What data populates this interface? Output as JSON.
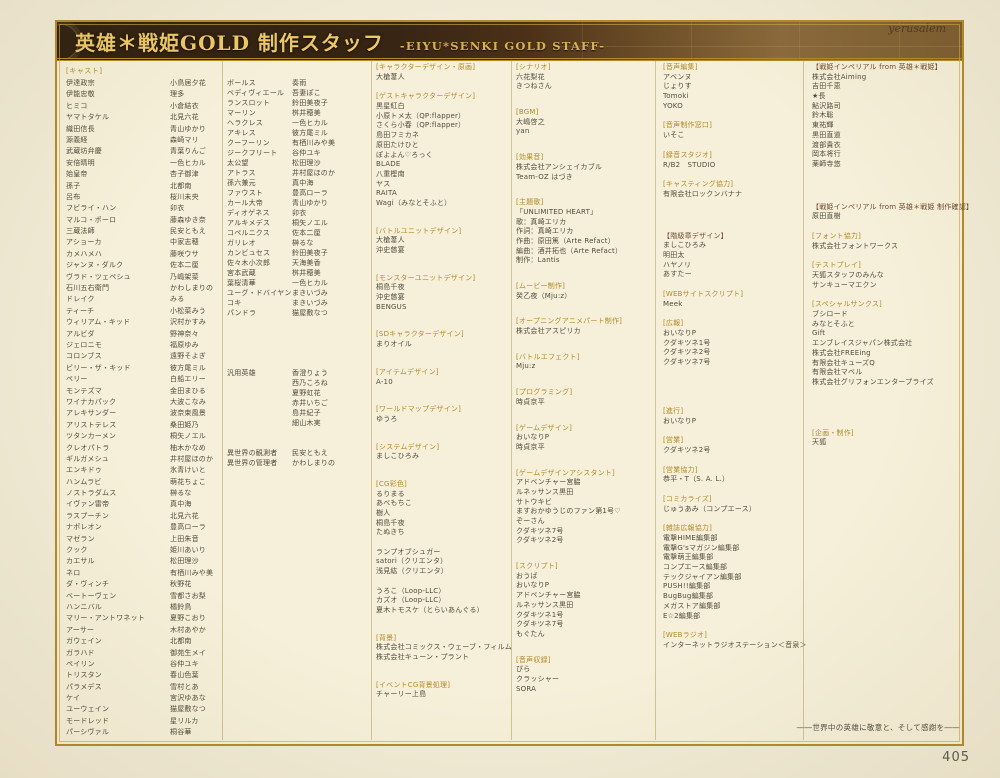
{
  "banner": {
    "title": "英雄＊戦姫GOLD 制作スタッフ",
    "subtitle": "-EIYU*SENKI GOLD STAFF-",
    "map_text": "yerusalem"
  },
  "page": {
    "footer": "――世界中の英雄に敬意と、そして感謝を――",
    "number": "405"
  },
  "cast_columns": [
    {
      "header": "[キャスト]",
      "rows": [
        [
          "伊達政宗",
          "小鳥居夕花"
        ],
        [
          "伊能忠敬",
          "理多"
        ],
        [
          "ヒミコ",
          "小倉結衣"
        ],
        [
          "ヤマトタケル",
          "北見六花"
        ],
        [
          "織田信長",
          "青山ゆかり"
        ],
        [
          "源義経",
          "森崎マリ"
        ],
        [
          "武蔵坊弁慶",
          "青葉りんご"
        ],
        [
          "安倍晴明",
          "一色ヒカル"
        ],
        [
          "始皇帝",
          "杏子御津"
        ],
        [
          "孫子",
          "北都南"
        ],
        [
          "呂布",
          "桜川未央"
        ],
        [
          "フビライ・ハン",
          "卯衣"
        ],
        [
          "マルコ・ポーロ",
          "藤森ゆき奈"
        ],
        [
          "三蔵法師",
          "民安ともえ"
        ],
        [
          "アショーカ",
          "中家志穂"
        ],
        [
          "カメハメハ",
          "藤咲ウサ"
        ],
        [
          "ジャンヌ・ダルク",
          "佐本二厘"
        ],
        [
          "ヴラド・ツェペシュ",
          "乃嶋架菜"
        ],
        [
          "石川五右衛門",
          "かわしまりの"
        ],
        [
          "ドレイク",
          "みる"
        ],
        [
          "ティーチ",
          "小松菜みう"
        ],
        [
          "ウィリアム・キッド",
          "沢村かすみ"
        ],
        [
          "アルビダ",
          "野神奈々"
        ],
        [
          "ジェロニモ",
          "福原ゆみ"
        ],
        [
          "コロンブス",
          "遠野そよぎ"
        ],
        [
          "ビリー・ザ・キッド",
          "彼方尾ミル"
        ],
        [
          "ペリー",
          "白船エリー"
        ],
        [
          "モンテズマ",
          "金田まひる"
        ],
        [
          "ワイナカパック",
          "大波こなみ"
        ],
        [
          "アレキサンダー",
          "波奈束風景"
        ],
        [
          "アリストテレス",
          "桑田姫乃"
        ],
        [
          "ツタンカーメン",
          "桐矢ノエル"
        ],
        [
          "クレオパトラ",
          "柚木かなめ"
        ],
        [
          "ギルガメシュ",
          "井村屋ほのか"
        ],
        [
          "エンキドゥ",
          "氷青けいと"
        ],
        [
          "ハンムラビ",
          "萌花ちょこ"
        ],
        [
          "ノストラダムス",
          "榊るな"
        ],
        [
          "イヴァン雷帝",
          "真中海"
        ],
        [
          "ラスプーチン",
          "北見六花"
        ],
        [
          "ナポレオン",
          "豊高ローラ"
        ],
        [
          "マゼラン",
          "上田朱音"
        ],
        [
          "クック",
          "姫川あいり"
        ],
        [
          "カエサル",
          "松田理沙"
        ],
        [
          "ネロ",
          "有栖川みや美"
        ],
        [
          "ダ・ヴィンチ",
          "秋野花"
        ],
        [
          "ベートーヴェン",
          "雪都さお梨"
        ],
        [
          "ハンニバル",
          "橘鈴鳥"
        ],
        [
          "マリー・アントワネット",
          "夏野こおり"
        ],
        [
          "アーサー",
          "木村あやか"
        ],
        [
          "ガウェイン",
          "北都南"
        ],
        [
          "ガラハド",
          "御苑生メイ"
        ],
        [
          "ペイリン",
          "谷仲ユキ"
        ],
        [
          "トリスタン",
          "春山色葉"
        ],
        [
          "パラメデス",
          "雪村とあ"
        ],
        [
          "ケイ",
          "宮沢ゆあな"
        ],
        [
          "ユーウェイン",
          "猫屋敷なつ"
        ],
        [
          "モードレッド",
          "星リルカ"
        ],
        [
          "パーシヴァル",
          "桐谷華"
        ]
      ]
    },
    {
      "header": "",
      "rows": [
        [
          "ボールス",
          "奏雨"
        ],
        [
          "ベディヴィエール",
          "吾妻ぽこ"
        ],
        [
          "ランスロット",
          "鈴田美夜子"
        ],
        [
          "マーリン",
          "桝井穂美"
        ],
        [
          "ヘラクレス",
          "一色ヒカル"
        ],
        [
          "アキレス",
          "彼方尾ミル"
        ],
        [
          "クーフーリン",
          "有栖川みや美"
        ],
        [
          "ジークフリート",
          "谷仲ユキ"
        ],
        [
          "太公望",
          "松田理沙"
        ],
        [
          "アトラス",
          "井村屋ほのか"
        ],
        [
          "孫六兼元",
          "真中海"
        ],
        [
          "ファウスト",
          "豊高ローラ"
        ],
        [
          "カール大帝",
          "青山ゆかり"
        ],
        [
          "ディオゲネス",
          "卯衣"
        ],
        [
          "アルキメデス",
          "桐矢ノエル"
        ],
        [
          "コペルニクス",
          "佐本二厘"
        ],
        [
          "ガリレオ",
          "榊るな"
        ],
        [
          "カンビュセス",
          "鈴田美夜子"
        ],
        [
          "佐々木小次郎",
          "天海美香"
        ],
        [
          "宮本武蔵",
          "桝井穂美"
        ],
        [
          "葉桜清華",
          "一色ヒカル"
        ],
        [
          "ユーグ・ドバイヤン",
          "まきいづみ"
        ],
        [
          "コキ",
          "まきいづみ"
        ],
        [
          "パンドラ",
          "猫屋敷なつ"
        ],
        null,
        null,
        null,
        null,
        null,
        [
          "汎用英雄",
          "香澄りょう"
        ],
        [
          "",
          "西乃ころね"
        ],
        [
          "",
          "夏野虹花"
        ],
        [
          "",
          "赤井いちご"
        ],
        [
          "",
          "島井紀子"
        ],
        [
          "",
          "細山木実"
        ],
        null,
        null,
        [
          "異世界の観測者",
          "民安ともえ"
        ],
        [
          "異世界の管理者",
          "かわしまりの"
        ]
      ]
    }
  ],
  "staff_columns": [
    {
      "sections": [
        {
          "h": "[キャラクターデザイン・原画]",
          "lines": [
            "大槍葦人"
          ]
        },
        {
          "h": "[ゲストキャラクターデザイン]",
          "lines": [
            "黒星紅白",
            "小原トメ太（QP:flapper）",
            "さくら小春（QP:flapper）",
            "島田フミカネ",
            "原田たけひと",
            "ぽよよん♡ろっく",
            "BLADE",
            "八重樫南",
            "ヤス",
            "RAITA",
            "Wagi（みなとそふと）"
          ]
        },
        {
          "h": "[バトルユニットデザイン]",
          "lines": [
            "大槍葦人",
            "沖史慈宴"
          ]
        },
        {
          "h": "[モンスターユニットデザイン]",
          "lines": [
            "桐島千夜",
            "沖史慈宴",
            "BENGUS"
          ]
        },
        {
          "h": "[SDキャラクターデザイン]",
          "lines": [
            "まりオイル"
          ]
        },
        {
          "h": "[アイテムデザイン]",
          "lines": [
            "A-10"
          ]
        },
        {
          "h": "[ワールドマップデザイン]",
          "lines": [
            "ゆうろ"
          ]
        },
        {
          "h": "[システムデザイン]",
          "lines": [
            "ましこひろみ"
          ]
        },
        {
          "h": "[CG彩色]",
          "lines": [
            "るりまる",
            "あべもちこ",
            "樹人",
            "桐島千夜",
            "たぬきち",
            "",
            "ランプオブシュガー",
            "satori（クリエンタ）",
            "浅見紘（クリエンタ）",
            "",
            "うろこ（Loop-LLC）",
            "カズオ（Loop-LLC）",
            "夏木トモスケ（とらいあんぐる）"
          ]
        },
        {
          "h": "[背景]",
          "lines": [
            "株式会社コミックス・ウェーブ・フィルム",
            "株式会社キューン・プラント"
          ]
        },
        {
          "h": "[イベントCG背景処理]",
          "lines": [
            "チャーリー上島"
          ]
        }
      ]
    },
    {
      "sections": [
        {
          "h": "[シナリオ]",
          "lines": [
            "六花梨花",
            "きつねさん"
          ]
        },
        {
          "h": "[BGM]",
          "lines": [
            "大嶋啓之",
            "yan"
          ]
        },
        {
          "h": "[効果音]",
          "lines": [
            "株式会社アンシェイカブル",
            "Team-OZ はづき"
          ]
        },
        {
          "h": "[主題歌]",
          "lines": [
            "「UNLIMITED HEART」",
            "歌：真崎エリカ",
            "作詞：真崎エリカ",
            "作曲：原田篤（Arte Refact）",
            "編曲：酒井拓也（Arte Refact）",
            "制作：Lantis"
          ]
        },
        {
          "h": "[ムービー制作]",
          "lines": [
            "癸乙夜（Mju:z）"
          ]
        },
        {
          "h": "[オープニングアニメパート制作]",
          "lines": [
            "株式会社アスピリカ"
          ]
        },
        {
          "h": "[バトルエフェクト]",
          "lines": [
            "Mju:z"
          ]
        },
        {
          "h": "[プログラミング]",
          "lines": [
            "時貞京平"
          ]
        },
        {
          "h": "[ゲームデザイン]",
          "lines": [
            "おいなりP",
            "時貞京平"
          ]
        },
        {
          "h": "[ゲームデザインアシスタント]",
          "lines": [
            "アドベンチャー宮脇",
            "ルネッサンス黒田",
            "サトウキビ",
            "ますおかゆうじのファン第1号♡",
            "ぞーさん",
            "クダキツネ7号",
            "クダキツネ2号"
          ]
        },
        {
          "h": "[スクリプト]",
          "lines": [
            "おうば",
            "おいなりP",
            "アドベンチャー宮脇",
            "ルネッサンス黒田",
            "クダキツネ1号",
            "クダキツネ7号",
            "もぐたん"
          ]
        },
        {
          "h": "[音声収録]",
          "lines": [
            "ぴら",
            "クラッシャー",
            "SORA"
          ]
        }
      ]
    },
    {
      "sections": [
        {
          "h": "[音声編集]",
          "lines": [
            "アベンヌ",
            "じょりす",
            "Tomoki",
            "YOKO"
          ]
        },
        {
          "h": "[音声制作窓口]",
          "lines": [
            "いそこ"
          ]
        },
        {
          "h": "[録音スタジオ]",
          "lines": [
            "R/B2　STUDIO"
          ]
        },
        {
          "h": "[キャスティング協力]",
          "lines": [
            "有限会社ロックンバナナ"
          ]
        },
        {
          "h": "【階級章デザイン】",
          "dark": true,
          "lines": [
            "ましこひろみ",
            "明田太",
            "ハヤノリ",
            "あすたー"
          ]
        },
        {
          "h": "[WEBサイトスクリプト]",
          "lines": [
            "Meek"
          ]
        },
        {
          "h": "[広報]",
          "lines": [
            "おいなりP",
            "クダキツネ1号",
            "クダキツネ2号",
            "クダキツネ7号"
          ]
        },
        {
          "h": "[進行]",
          "lines": [
            "おいなりP"
          ]
        },
        {
          "h": "[営業]",
          "lines": [
            "クダキツネ2号"
          ]
        },
        {
          "h": "[営業協力]",
          "lines": [
            "恭平・T（S. A. L.）"
          ]
        },
        {
          "h": "[コミカライズ]",
          "lines": [
            "じゅうあみ（コンプエース）"
          ]
        },
        {
          "h": "[雑誌広報協力]",
          "lines": [
            "電撃HIME編集部",
            "電撃G'sマガジン編集部",
            "電撃萌王編集部",
            "コンプエース編集部",
            "テックジャイアン編集部",
            "PUSH!!編集部",
            "BugBug編集部",
            "メガストア編集部",
            "E☆2編集部"
          ]
        },
        {
          "h": "[WEBラジオ]",
          "lines": [
            "インターネットラジオステーション＜音泉＞"
          ]
        }
      ]
    },
    {
      "sections": [
        {
          "h": "【戦姫インペリアル from 英雄＊戦姫】",
          "dark": true,
          "lines": [
            "株式会社Aiming",
            "吉田千恵",
            "★長",
            "鮎沢路司",
            "鈴木聡",
            "東祐輝",
            "黒田直道",
            "渡部貴衣",
            "岡本将行",
            "薬師寺悠"
          ]
        },
        {
          "h": "【戦姫インペリアル from 英雄＊戦姫 制作確認】",
          "dark": true,
          "lines": [
            "原田直樹"
          ]
        },
        {
          "h": "[フォント協力]",
          "lines": [
            "株式会社フォントワークス"
          ]
        },
        {
          "h": "[テストプレイ]",
          "lines": [
            "天狐スタッフのみんな",
            "サンキューマエクン"
          ]
        },
        {
          "h": "[スペシャルサンクス]",
          "lines": [
            "ブシロード",
            "みなとそふと",
            "Gift",
            "エンブレイスジャパン株式会社",
            "株式会社FREEing",
            "有限会社キューズQ",
            "有限会社マベル",
            "株式会社グリフォンエンタープライズ"
          ]
        },
        {
          "h": "[企画・制作]",
          "lines": [
            "天狐"
          ]
        }
      ]
    }
  ]
}
